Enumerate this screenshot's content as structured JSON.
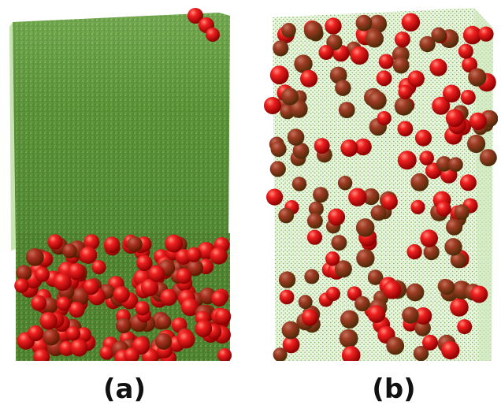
{
  "figure": {
    "panels": [
      {
        "label": "(a)"
      },
      {
        "label": "(b)"
      }
    ]
  },
  "colors": {
    "particle_red": "#e01818",
    "particle_dark_red": "#7a0000",
    "medium_green": "#4e8a2f",
    "medium_light_green": "#9ccc7a"
  }
}
